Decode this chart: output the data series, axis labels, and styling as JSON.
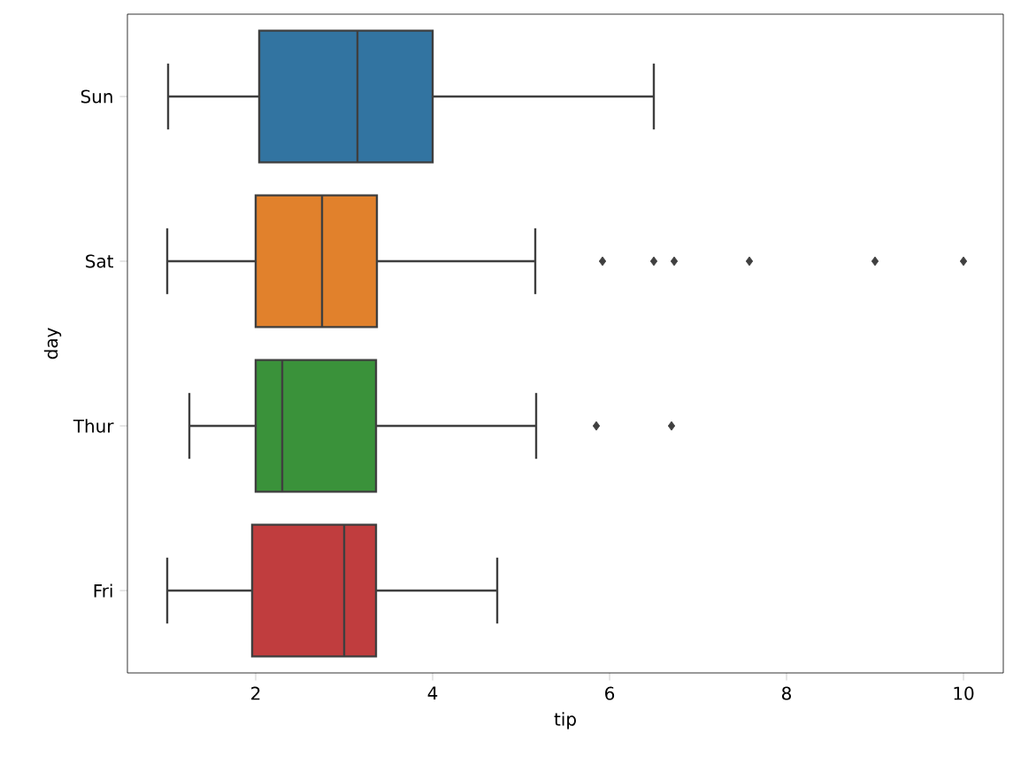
{
  "chart_data": {
    "type": "box",
    "orientation": "horizontal",
    "xlabel": "tip",
    "ylabel": "day",
    "categories": [
      "Sun",
      "Sat",
      "Thur",
      "Fri"
    ],
    "colors": [
      "#3274a1",
      "#e1812c",
      "#3a923a",
      "#c03d3e"
    ],
    "boxes": [
      {
        "low": 1.01,
        "q1": 2.04,
        "median": 3.15,
        "q3": 4.0,
        "high": 6.5
      },
      {
        "low": 1.0,
        "q1": 2.0,
        "median": 2.75,
        "q3": 3.37,
        "high": 5.16,
        "outliers": [
          5.92,
          6.5,
          6.73,
          7.58,
          9.0,
          10.0
        ]
      },
      {
        "low": 1.25,
        "q1": 2.0,
        "median": 2.3,
        "q3": 3.36,
        "high": 5.17,
        "outliers": [
          5.85,
          6.7
        ]
      },
      {
        "low": 1.0,
        "q1": 1.96,
        "median": 3.0,
        "q3": 3.36,
        "high": 4.73
      }
    ],
    "xlim": [
      0.55,
      10.45
    ],
    "xticks": [
      2,
      4,
      6,
      8,
      10
    ],
    "marker": "diamond"
  }
}
